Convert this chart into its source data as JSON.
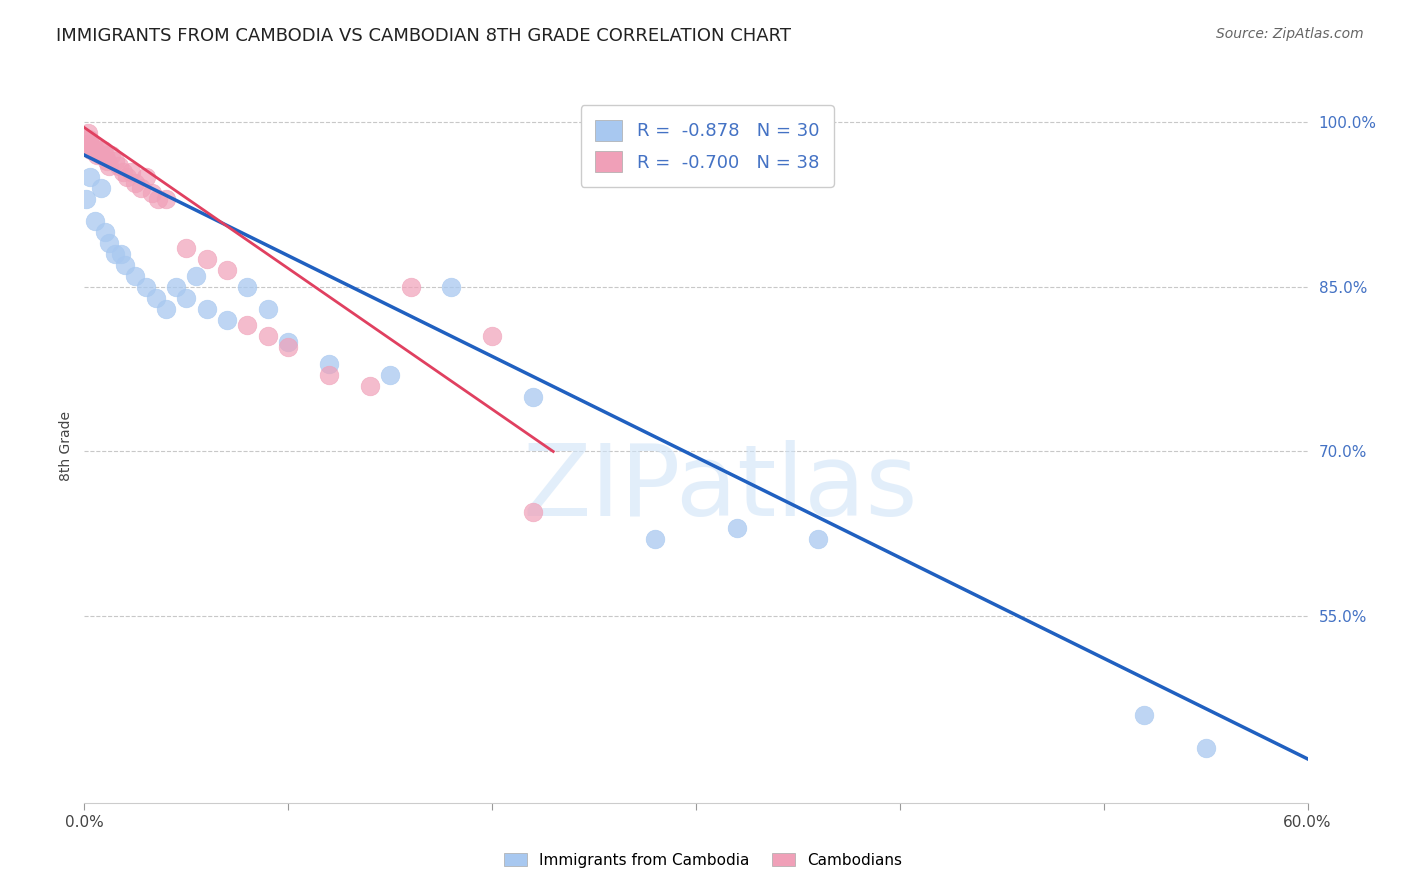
{
  "title": "IMMIGRANTS FROM CAMBODIA VS CAMBODIAN 8TH GRADE CORRELATION CHART",
  "source": "Source: ZipAtlas.com",
  "ylabel": "8th Grade",
  "legend_blue_r": "-0.878",
  "legend_blue_n": "30",
  "legend_pink_r": "-0.700",
  "legend_pink_n": "38",
  "legend_label_blue": "Immigrants from Cambodia",
  "legend_label_pink": "Cambodians",
  "blue_color": "#A8C8F0",
  "pink_color": "#F0A0B8",
  "trendline_blue_color": "#2060C0",
  "trendline_pink_color": "#E04060",
  "background_color": "#FFFFFF",
  "watermark": "ZIPatlas",
  "blue_scatter_x": [
    0.1,
    0.3,
    0.5,
    0.8,
    1.0,
    1.2,
    1.5,
    1.8,
    2.0,
    2.5,
    3.0,
    3.5,
    4.0,
    4.5,
    5.0,
    5.5,
    6.0,
    7.0,
    8.0,
    9.0,
    10.0,
    12.0,
    15.0,
    18.0,
    22.0,
    28.0,
    32.0,
    36.0,
    52.0,
    55.0
  ],
  "blue_scatter_y": [
    93.0,
    95.0,
    91.0,
    94.0,
    90.0,
    89.0,
    88.0,
    88.0,
    87.0,
    86.0,
    85.0,
    84.0,
    83.0,
    85.0,
    84.0,
    86.0,
    83.0,
    82.0,
    85.0,
    83.0,
    80.0,
    78.0,
    77.0,
    85.0,
    75.0,
    62.0,
    63.0,
    62.0,
    46.0,
    43.0
  ],
  "pink_scatter_x": [
    0.1,
    0.15,
    0.2,
    0.25,
    0.3,
    0.35,
    0.4,
    0.5,
    0.6,
    0.7,
    0.8,
    0.9,
    1.0,
    1.1,
    1.2,
    1.3,
    1.5,
    1.7,
    1.9,
    2.1,
    2.3,
    2.5,
    2.8,
    3.0,
    3.3,
    3.6,
    4.0,
    5.0,
    6.0,
    7.0,
    8.0,
    9.0,
    10.0,
    12.0,
    14.0,
    16.0,
    20.0,
    22.0
  ],
  "pink_scatter_y": [
    98.5,
    98.0,
    99.0,
    98.5,
    98.0,
    97.5,
    98.0,
    97.5,
    97.0,
    97.5,
    97.0,
    97.5,
    97.0,
    96.5,
    96.0,
    97.0,
    96.5,
    96.0,
    95.5,
    95.0,
    95.5,
    94.5,
    94.0,
    95.0,
    93.5,
    93.0,
    93.0,
    88.5,
    87.5,
    86.5,
    81.5,
    80.5,
    79.5,
    77.0,
    76.0,
    85.0,
    80.5,
    64.5
  ],
  "xlim_min": 0.0,
  "xlim_max": 60.0,
  "ylim_min": 38.0,
  "ylim_max": 103.0,
  "blue_trend_x0": 0.0,
  "blue_trend_y0": 97.0,
  "blue_trend_x1": 60.0,
  "blue_trend_y1": 42.0,
  "pink_trend_x0": 0.0,
  "pink_trend_y0": 99.5,
  "pink_trend_x1": 23.0,
  "pink_trend_y1": 70.0,
  "y_tick_vals": [
    55.0,
    70.0,
    85.0,
    100.0
  ],
  "grid_color": "#C8C8C8",
  "grid_style": "--",
  "title_fontsize": 13,
  "source_fontsize": 10,
  "tick_fontsize": 11,
  "legend_fontsize": 13
}
